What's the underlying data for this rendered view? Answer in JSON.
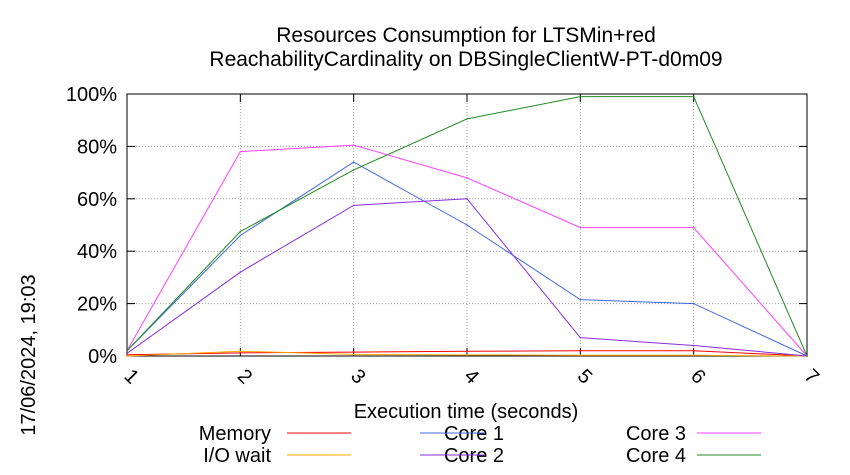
{
  "chart_data": {
    "type": "line",
    "title_line1": "Resources Consumption for LTSMin+red",
    "title_line2": "ReachabilityCardinality on DBSingleClientW-PT-d0m09",
    "xlabel": "Execution time (seconds)",
    "ylabel": "",
    "side_label": "17/06/2024, 19:03",
    "x": [
      1,
      2,
      3,
      4,
      5,
      6,
      7
    ],
    "x_tick_labels": [
      "1",
      "2",
      "3",
      "4",
      "5",
      "6",
      "7"
    ],
    "xlim": [
      1,
      7
    ],
    "ylim": [
      0,
      100
    ],
    "y_ticks": [
      0,
      20,
      40,
      60,
      80,
      100
    ],
    "y_tick_labels": [
      "0%",
      "20%",
      "40%",
      "60%",
      "80%",
      "100%"
    ],
    "grid": true,
    "legend_position": "bottom",
    "series": [
      {
        "name": "Memory",
        "color": "#ff0000",
        "values": [
          0.5,
          1.2,
          1.5,
          1.8,
          2.0,
          2.0,
          0
        ]
      },
      {
        "name": "I/O wait",
        "color": "#ffa500",
        "values": [
          0,
          1.8,
          0.6,
          0.4,
          0.3,
          0.3,
          0
        ]
      },
      {
        "name": "Core 1",
        "color": "#4169e1",
        "values": [
          2,
          46,
          74,
          50,
          21.5,
          20,
          0
        ]
      },
      {
        "name": "Core 2",
        "color": "#8a2be2",
        "values": [
          1,
          32,
          57.5,
          60,
          7,
          4,
          0
        ]
      },
      {
        "name": "Core 3",
        "color": "#ff40ff",
        "values": [
          2,
          78,
          80.5,
          68,
          49,
          49,
          0
        ]
      },
      {
        "name": "Core 4",
        "color": "#228b22",
        "values": [
          2,
          47.5,
          71,
          90.5,
          99,
          99,
          0
        ]
      }
    ]
  }
}
